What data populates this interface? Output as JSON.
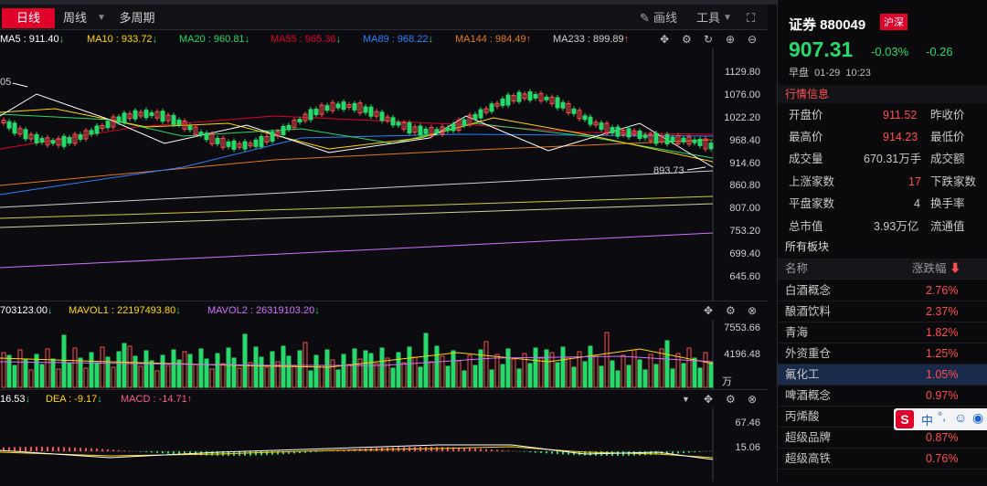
{
  "toolbar": {
    "tabs": [
      "日线",
      "周线",
      "多周期"
    ],
    "draw_label": "画线",
    "tools_label": "工具"
  },
  "ma_bar": [
    {
      "label": "MA5 : 911.40",
      "arrow": "↓",
      "color": "#ffffff"
    },
    {
      "label": "MA10 : 933.72",
      "arrow": "↓",
      "color": "#ffd700"
    },
    {
      "label": "MA20 : 960.81",
      "arrow": "↓",
      "color": "#27d96a"
    },
    {
      "label": "MA55 : 965.36",
      "arrow": "↓",
      "color": "#e0002a"
    },
    {
      "label": "MA89 : 968.22",
      "arrow": "↓",
      "color": "#2f7fff"
    },
    {
      "label": "MA144 : 984.49",
      "arrow": "↑",
      "color": "#e07a20"
    },
    {
      "label": "MA233 : 899.89",
      "arrow": "↑",
      "color": "#d0d0d0"
    }
  ],
  "main_axis": [
    "1129.80",
    "1076.00",
    "1022.20",
    "968.40",
    "914.60",
    "860.80",
    "807.00",
    "753.20",
    "699.40",
    "645.60"
  ],
  "annotations": {
    "high": "05",
    "low": "893.73"
  },
  "vol_bar": [
    {
      "label": "703123.00",
      "arrow": "↓",
      "color": "#ffffff"
    },
    {
      "label": "MAVOL1 : 22197493.80",
      "arrow": "↓",
      "color": "#ffd700"
    },
    {
      "label": "MAVOL2 : 26319103.20",
      "arrow": "↓",
      "color": "#d070ff"
    }
  ],
  "vol_axis": [
    "7553.66",
    "4196.48",
    "万"
  ],
  "macd_bar": [
    {
      "label": "16.53",
      "arrow": "↓",
      "color": "#ffffff"
    },
    {
      "label": "DEA : -9.17",
      "arrow": "↓",
      "color": "#ffd700"
    },
    {
      "label": "MACD : -14.71",
      "arrow": "↑",
      "color": "#ff5b8a"
    }
  ],
  "macd_axis": [
    "67.46",
    "15.06"
  ],
  "stock": {
    "name": "证券 880049",
    "market": "沪深",
    "price": "907.31",
    "pct": "-0.03%",
    "change": "-0.26",
    "session": "早盘",
    "date": "01-29",
    "time": "10:23"
  },
  "quote_section": "行情信息",
  "quote_rows": [
    {
      "k": "开盘价",
      "v": "911.52",
      "k2": "昨收价",
      "color": "#ff4d4f"
    },
    {
      "k": "最高价",
      "v": "914.23",
      "k2": "最低价",
      "color": "#ff4d4f"
    },
    {
      "k": "成交量",
      "v": "670.31万手",
      "k2": "成交额",
      "color": "#d0d0d0"
    },
    {
      "k": "上涨家数",
      "v": "17",
      "k2": "下跌家数",
      "color": "#ff4d4f"
    },
    {
      "k": "平盘家数",
      "v": "4",
      "k2": "换手率",
      "color": "#d0d0d0"
    },
    {
      "k": "总市值",
      "v": "3.93万亿",
      "k2": "流通值",
      "color": "#d0d0d0"
    }
  ],
  "sector_section": "所有板块",
  "sector_header": {
    "name": "名称",
    "chg": "涨跌幅"
  },
  "sectors": [
    {
      "name": "白酒概念",
      "chg": "2.76%"
    },
    {
      "name": "酿酒饮料",
      "chg": "2.37%"
    },
    {
      "name": "青海",
      "chg": "1.82%"
    },
    {
      "name": "外资重仓",
      "chg": "1.25%"
    },
    {
      "name": "氟化工",
      "chg": "1.05%"
    },
    {
      "name": "啤酒概念",
      "chg": "0.97%"
    },
    {
      "name": "丙烯酸",
      "chg": ""
    },
    {
      "name": "超级品牌",
      "chg": "0.87%"
    },
    {
      "name": "超级高铁",
      "chg": "0.76%"
    }
  ],
  "ime_bar": {
    "logo": "S",
    "lang": "中"
  },
  "colors": {
    "up": "#ff4d4f",
    "down": "#27d96a",
    "accent": "#e0002a"
  }
}
